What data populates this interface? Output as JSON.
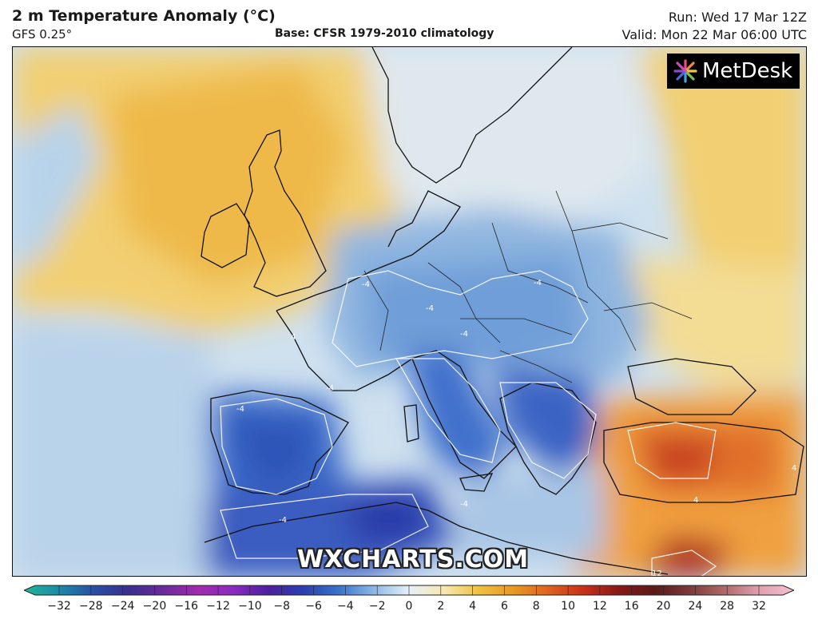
{
  "header": {
    "title": "2 m Temperature Anomaly (°C)",
    "model": "GFS 0.25°",
    "base": "Base: CFSR 1979-2010 climatology",
    "run": "Run: Wed 17 Mar 12Z",
    "valid": "Valid: Mon 22 Mar 06:00 UTC"
  },
  "logo": {
    "text": "MetDesk",
    "icon": "metdesk-burst-icon"
  },
  "watermark": "WXCHARTS.COM",
  "map": {
    "contour_labels": [
      "-4",
      "-4",
      "-4",
      "-4",
      "-4",
      "-4",
      "-4",
      "-4",
      "4",
      "4",
      "4",
      "12"
    ]
  },
  "colorbar": {
    "ticks": [
      "−32",
      "−28",
      "−24",
      "−20",
      "−16",
      "−12",
      "−10",
      "−8",
      "−6",
      "−4",
      "−2",
      "0",
      "2",
      "4",
      "6",
      "8",
      "10",
      "12",
      "16",
      "20",
      "24",
      "28",
      "32"
    ],
    "colors": [
      "#1fb89a",
      "#1c8aa8",
      "#2a4fa6",
      "#3a2f8e",
      "#6b2a9e",
      "#a22ab0",
      "#8a2bc0",
      "#4b1fa0",
      "#2b3fb0",
      "#3a72cc",
      "#8cb8e6",
      "#e6f0f8",
      "#f6e8b0",
      "#f0c040",
      "#e89820",
      "#e06020",
      "#c83018",
      "#8a1818",
      "#5a1a1a",
      "#7a3a3a",
      "#b06868",
      "#e0a0b0",
      "#f4c0d0"
    ]
  }
}
